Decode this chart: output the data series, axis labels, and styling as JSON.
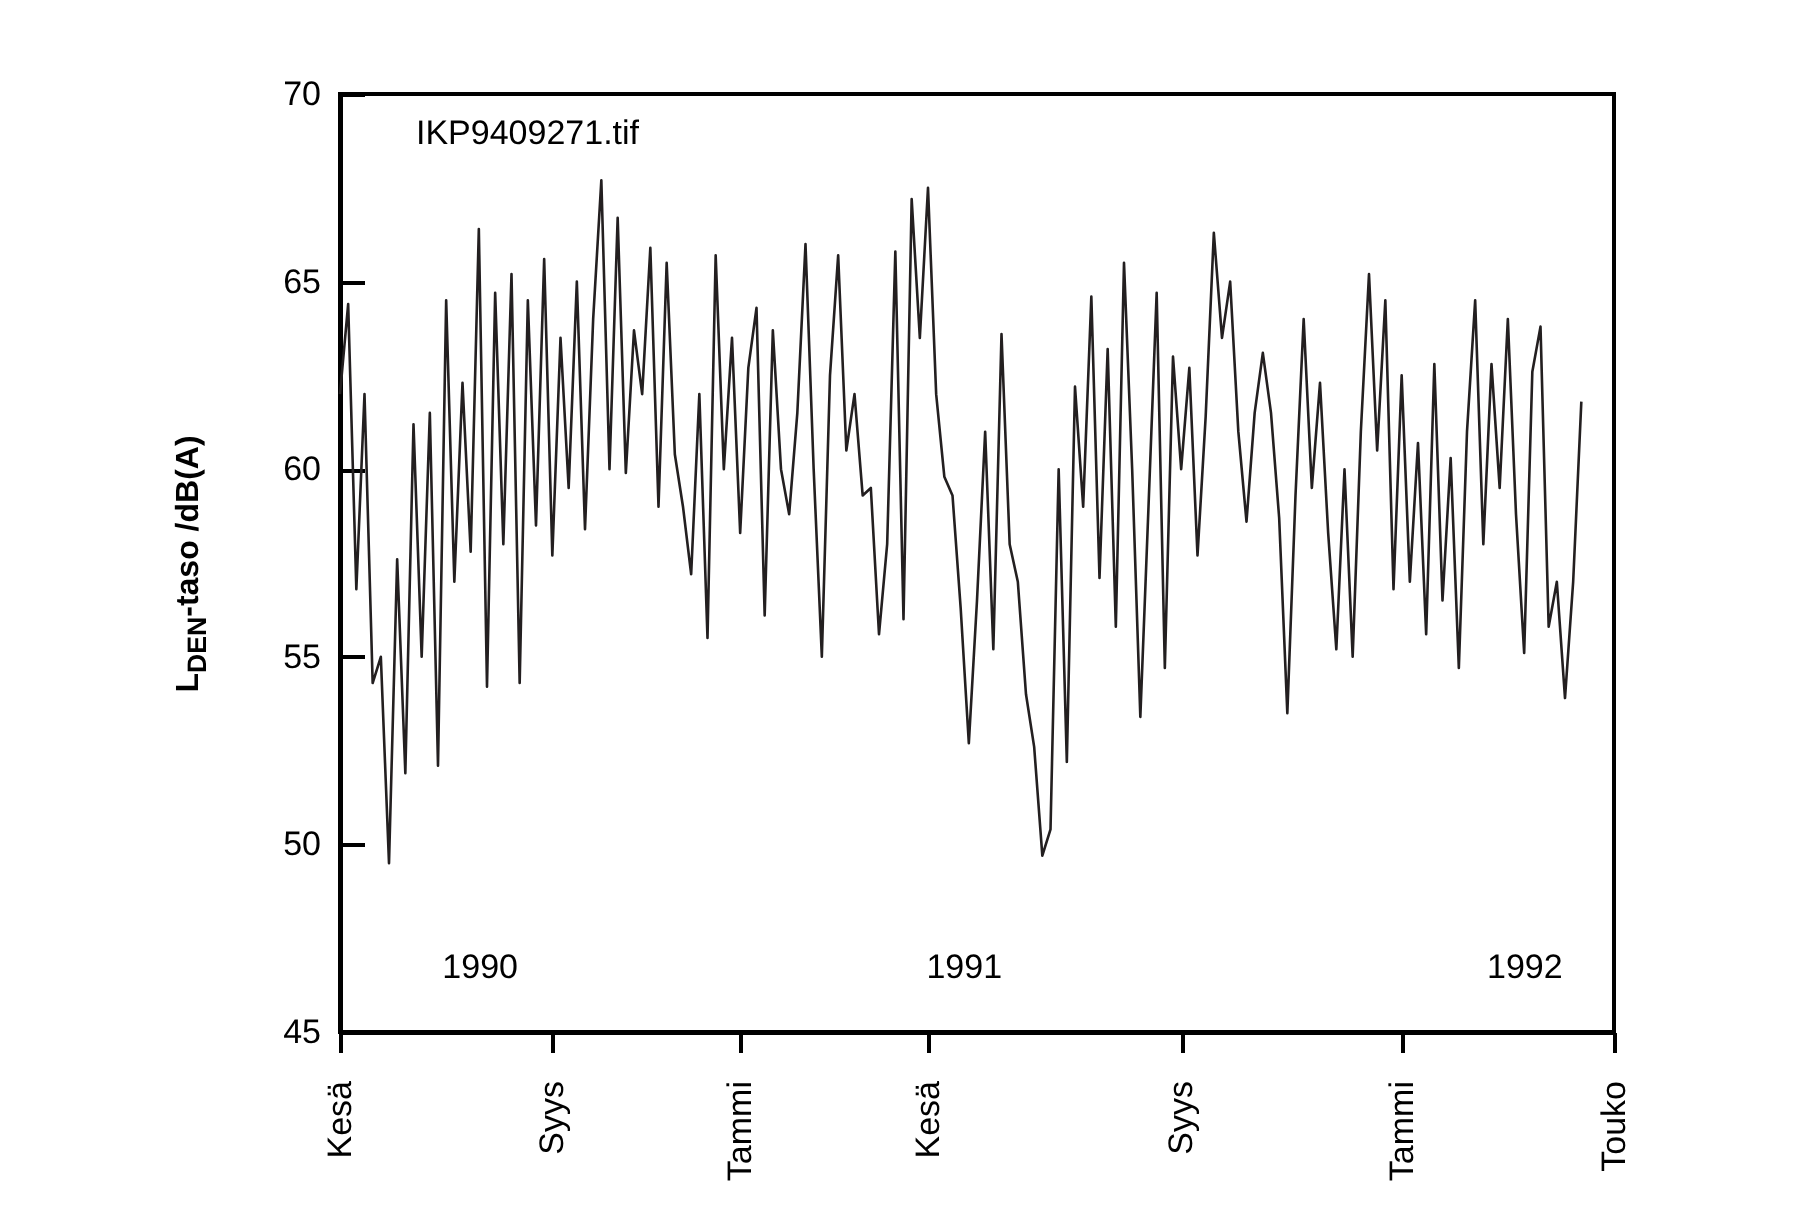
{
  "chart_data": {
    "type": "line",
    "ylabel": "L$_{DEN}$-taso /dB(A)",
    "annotations": [
      "IKP9409271.tif",
      "1990",
      "1991",
      "1992"
    ],
    "categories": [
      "Kesä",
      null,
      null,
      null,
      null,
      null,
      null,
      null,
      null,
      null,
      null,
      null,
      null,
      null,
      null,
      null,
      null,
      null,
      null,
      null,
      null,
      null,
      null,
      null,
      null,
      null,
      "Syys",
      null,
      null,
      null,
      null,
      null,
      null,
      null,
      null,
      null,
      null,
      null,
      null,
      null,
      null,
      null,
      null,
      null,
      null,
      null,
      null,
      null,
      null,
      "Tammi",
      null,
      null,
      null,
      null,
      null,
      null,
      null,
      null,
      null,
      null,
      null,
      null,
      null,
      null,
      null,
      null,
      null,
      null,
      null,
      null,
      null,
      null,
      "Kesä",
      null,
      null,
      null,
      null,
      null,
      null,
      null,
      null,
      null,
      null,
      null,
      null,
      null,
      null,
      null,
      null,
      null,
      null,
      null,
      null,
      null,
      null,
      null,
      null,
      null,
      null,
      null,
      null,
      null,
      null,
      "Syys",
      null,
      null,
      null,
      null,
      null,
      null,
      null,
      null,
      null,
      null,
      null,
      null,
      null,
      null,
      null,
      null,
      null,
      null,
      null,
      null,
      null,
      null,
      null,
      null,
      null,
      null,
      "Tammi",
      null,
      null,
      null,
      null,
      null,
      null,
      null,
      null,
      null,
      null,
      null,
      null,
      null,
      null,
      null,
      null,
      null,
      null,
      null,
      null,
      null,
      null,
      null,
      null,
      null,
      "Touko"
    ],
    "values": [
      62,
      64.4,
      56.8,
      62,
      54.3,
      55,
      49.5,
      57.6,
      51.9,
      61.2,
      55,
      61.5,
      52.1,
      64.5,
      57,
      62.3,
      57.8,
      66.4,
      54.2,
      64.7,
      58,
      65.2,
      54.3,
      64.5,
      58.5,
      65.6,
      57.7,
      63.5,
      59.5,
      65,
      58.4,
      64,
      67.7,
      60,
      66.7,
      59.9,
      63.7,
      62,
      65.9,
      59,
      65.5,
      60.4,
      59,
      57.2,
      62,
      55.5,
      65.7,
      60,
      63.5,
      58.3,
      62.7,
      64.3,
      56.1,
      63.7,
      60,
      58.8,
      61.5,
      66,
      60,
      55,
      62.5,
      65.7,
      60.5,
      62,
      59.3,
      59.5,
      55.6,
      58,
      65.8,
      56,
      67.2,
      63.5,
      67.5,
      62,
      59.8,
      59.3,
      56.3,
      52.7,
      56.5,
      61,
      55.2,
      63.6,
      58,
      57,
      54,
      52.6,
      49.7,
      50.4,
      60,
      52.2,
      62.2,
      59,
      64.6,
      57.1,
      63.2,
      55.8,
      65.5,
      60,
      53.4,
      59,
      64.7,
      54.7,
      63,
      60,
      62.7,
      57.7,
      61.4,
      66.3,
      63.5,
      65,
      61,
      58.6,
      61.5,
      63.1,
      61.5,
      58.7,
      53.5,
      59.3,
      64,
      59.5,
      62.3,
      58.3,
      55.2,
      60,
      55,
      61,
      65.2,
      60.5,
      64.5,
      56.8,
      62.5,
      57,
      60.7,
      55.6,
      62.8,
      56.5,
      60.3,
      54.7,
      61,
      64.5,
      58,
      62.8,
      59.5,
      64,
      58.8,
      55.1,
      62.6,
      63.8,
      55.8,
      57,
      53.9,
      57,
      61.8,
      null,
      null,
      null,
      null
    ],
    "color": "#231f20",
    "line_style": "solid",
    "ylim": [
      45,
      70
    ],
    "yticks": [
      45,
      50,
      55,
      60,
      65,
      70
    ],
    "grid": false
  }
}
